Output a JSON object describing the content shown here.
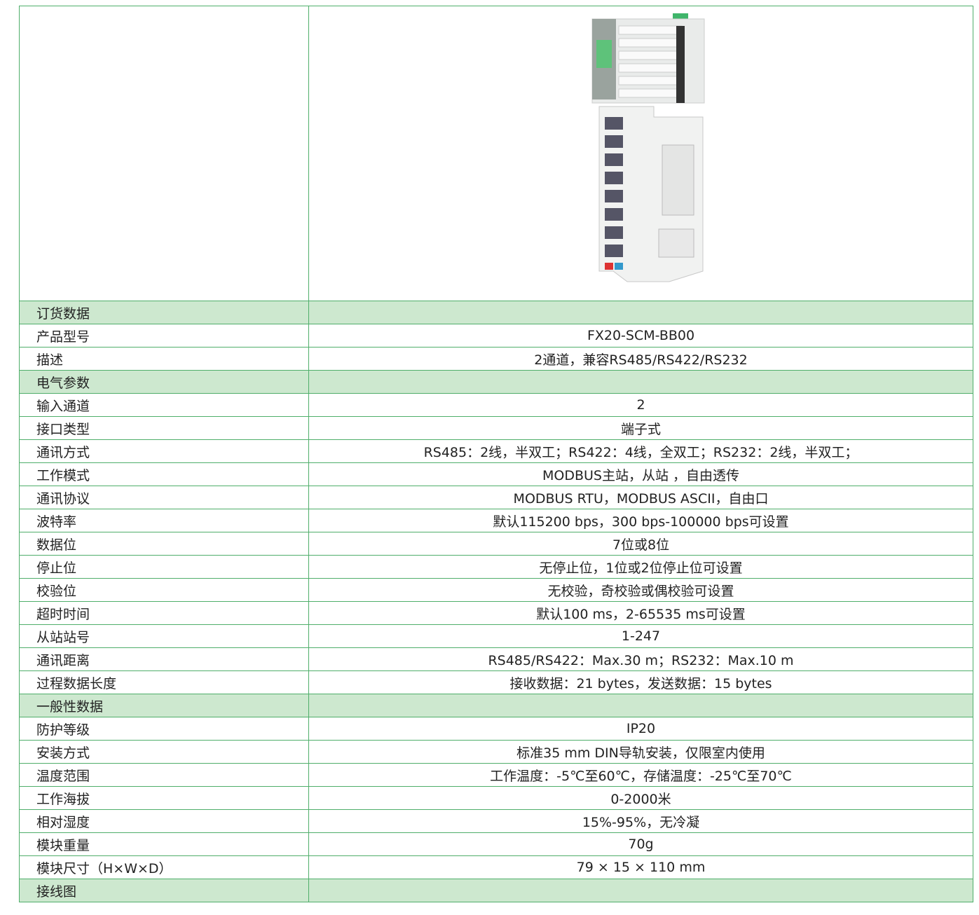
{
  "table": {
    "rows": [
      [
        "订货数据"
      ],
      [
        "产品型号",
        "FX20-SCM-BB00"
      ],
      [
        "描述",
        "2通道，兼容RS485/RS422/RS232"
      ],
      [
        "电气参数"
      ],
      [
        "输入通道",
        "2"
      ],
      [
        "接口类型",
        "端子式"
      ],
      [
        "通讯方式",
        "RS485：2线，半双工；RS422：4线，全双工；RS232：2线，半双工；"
      ],
      [
        "工作模式",
        "MODBUS主站，从站 ，自由透传"
      ],
      [
        "通讯协议",
        "MODBUS RTU，MODBUS ASCII，自由口"
      ],
      [
        "波特率",
        "默认115200 bps，300 bps-100000 bps可设置"
      ],
      [
        "数据位",
        "7位或8位"
      ],
      [
        "停止位",
        "无停止位，1位或2位停止位可设置"
      ],
      [
        "校验位",
        "无校验，奇校验或偶校验可设置"
      ],
      [
        "超时时间",
        "默认100 ms，2-65535 ms可设置"
      ],
      [
        "从站站号",
        "1-247"
      ],
      [
        "通讯距离",
        "RS485/RS422：Max.30 m；RS232：Max.10 m"
      ],
      [
        "过程数据长度",
        "接收数据：21 bytes，发送数据：15 bytes"
      ],
      [
        "一般性数据"
      ],
      [
        "防护等级",
        "IP20"
      ],
      [
        "安装方式",
        "标准35 mm DIN导轨安装，仅限室内使用"
      ],
      [
        "温度范围",
        "工作温度：-5℃至60℃，存储温度：-25℃至70℃"
      ],
      [
        "工作海拔",
        "0-2000米"
      ],
      [
        "相对湿度",
        "15%-95%，无冷凝"
      ],
      [
        "模块重量",
        "70g"
      ],
      [
        "模块尺寸（H×W×D）",
        "79 × 15 × 110 mm"
      ],
      [
        "接线图"
      ]
    ]
  }
}
